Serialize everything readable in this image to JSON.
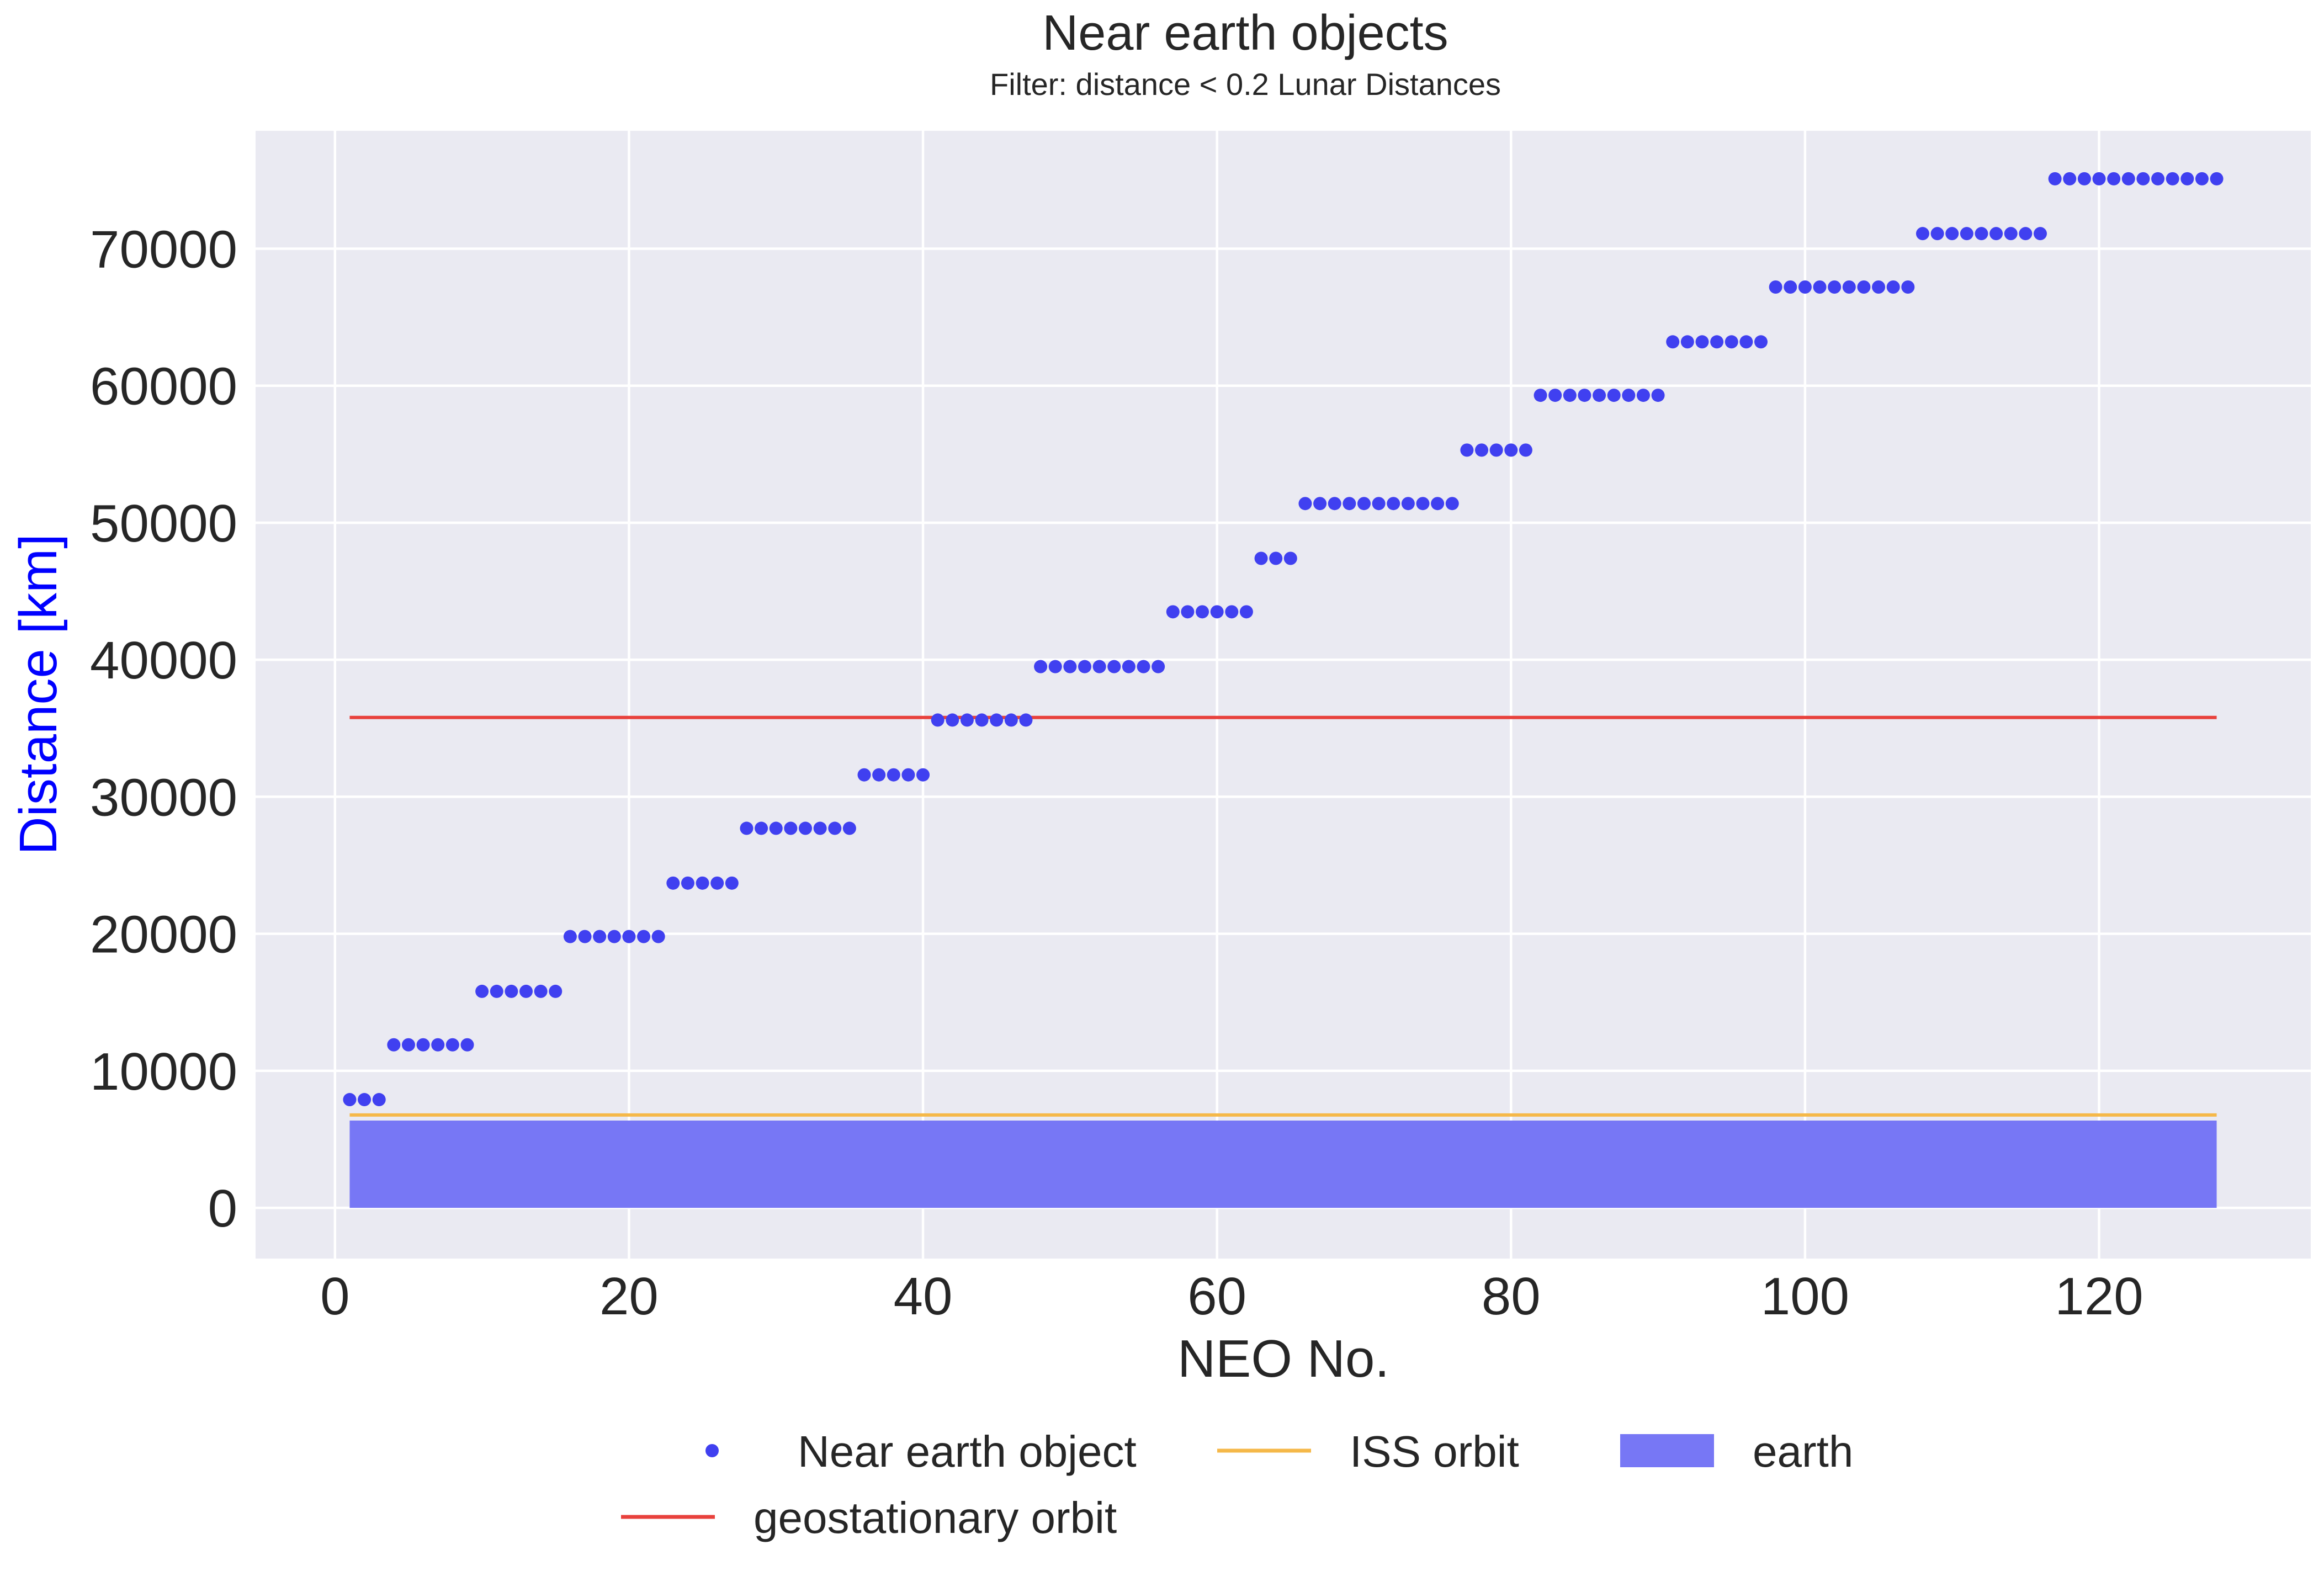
{
  "chart_data": {
    "type": "scatter",
    "title": "Near earth objects",
    "subtitle": "Filter: distance < 0.2 Lunar Distances",
    "xlabel": "NEO No.",
    "ylabel": "Distance [km]",
    "xlim": [
      -5.4,
      134.4
    ],
    "ylim": [
      -3700,
      78600
    ],
    "xticks": [
      0,
      20,
      40,
      60,
      80,
      100,
      120
    ],
    "yticks": [
      0,
      10000,
      20000,
      30000,
      40000,
      50000,
      60000,
      70000
    ],
    "grid": true,
    "legend_position": "bottom-center",
    "colors": {
      "background": "#eaeaf2",
      "grid": "#ffffff",
      "neo": "#4040f0",
      "geostationary": "#e8413c",
      "iss": "#f5b849",
      "earth": "#7777f5",
      "ylabel": "#0000ff"
    },
    "neo_groups": [
      {
        "x_start": 1,
        "x_end": 3,
        "y": 7900
      },
      {
        "x_start": 4,
        "x_end": 9,
        "y": 11900
      },
      {
        "x_start": 10,
        "x_end": 15,
        "y": 15800
      },
      {
        "x_start": 16,
        "x_end": 22,
        "y": 19800
      },
      {
        "x_start": 23,
        "x_end": 27,
        "y": 23700
      },
      {
        "x_start": 28,
        "x_end": 35,
        "y": 27700
      },
      {
        "x_start": 36,
        "x_end": 40,
        "y": 31600
      },
      {
        "x_start": 41,
        "x_end": 47,
        "y": 35600
      },
      {
        "x_start": 48,
        "x_end": 56,
        "y": 39500
      },
      {
        "x_start": 57,
        "x_end": 62,
        "y": 43500
      },
      {
        "x_start": 63,
        "x_end": 65,
        "y": 47400
      },
      {
        "x_start": 66,
        "x_end": 76,
        "y": 51400
      },
      {
        "x_start": 77,
        "x_end": 81,
        "y": 55300
      },
      {
        "x_start": 82,
        "x_end": 90,
        "y": 59300
      },
      {
        "x_start": 91,
        "x_end": 97,
        "y": 63200
      },
      {
        "x_start": 98,
        "x_end": 107,
        "y": 67200
      },
      {
        "x_start": 108,
        "x_end": 116,
        "y": 71100
      },
      {
        "x_start": 117,
        "x_end": 128,
        "y": 75100
      }
    ],
    "geostationary_orbit": {
      "x": [
        1,
        128
      ],
      "y": 35786
    },
    "iss_orbit": {
      "x": [
        1,
        128
      ],
      "y": 6780
    },
    "earth": {
      "x": [
        1,
        128
      ],
      "y": [
        0,
        6371
      ]
    },
    "legend": [
      {
        "label": "Near earth object",
        "type": "dot",
        "color_key": "neo"
      },
      {
        "label": "ISS orbit",
        "type": "line",
        "color_key": "iss"
      },
      {
        "label": "earth",
        "type": "patch",
        "color_key": "earth"
      },
      {
        "label": "geostationary orbit",
        "type": "line",
        "color_key": "geostationary"
      }
    ]
  }
}
